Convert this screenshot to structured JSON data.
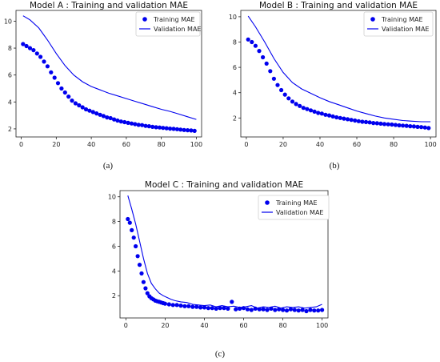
{
  "colors": {
    "series": "#0000ee",
    "axis": "#222222",
    "background": "#ffffff"
  },
  "chart_data": [
    {
      "panel": "a",
      "type": "line",
      "title": "Model A : Training and validation MAE",
      "caption": "(a)",
      "xlabel": "",
      "ylabel": "",
      "xlim": [
        -3,
        103
      ],
      "ylim": [
        1.4,
        10.8
      ],
      "xticks": [
        "0",
        "20",
        "40",
        "60",
        "80",
        "100"
      ],
      "yticks": [
        "2",
        "4",
        "6",
        "8",
        "10"
      ],
      "grid": false,
      "legend_position": "top-right",
      "series": [
        {
          "name": "Training MAE",
          "style": "markers",
          "x": [
            1,
            3,
            5,
            7,
            9,
            11,
            13,
            15,
            17,
            19,
            21,
            23,
            25,
            27,
            29,
            31,
            33,
            35,
            37,
            39,
            41,
            43,
            45,
            47,
            49,
            51,
            53,
            55,
            57,
            59,
            61,
            63,
            65,
            67,
            69,
            71,
            73,
            75,
            77,
            79,
            81,
            83,
            85,
            87,
            89,
            91,
            93,
            95,
            97,
            99
          ],
          "values": [
            8.3,
            8.15,
            8.0,
            7.85,
            7.6,
            7.35,
            7.0,
            6.65,
            6.2,
            5.8,
            5.4,
            5.0,
            4.7,
            4.4,
            4.1,
            3.9,
            3.75,
            3.6,
            3.45,
            3.35,
            3.25,
            3.15,
            3.05,
            2.95,
            2.85,
            2.8,
            2.7,
            2.62,
            2.55,
            2.5,
            2.45,
            2.4,
            2.35,
            2.3,
            2.28,
            2.22,
            2.2,
            2.15,
            2.12,
            2.1,
            2.07,
            2.05,
            2.02,
            2.0,
            1.98,
            1.95,
            1.92,
            1.9,
            1.88,
            1.85
          ]
        },
        {
          "name": "Validation MAE",
          "style": "line",
          "x": [
            1,
            5,
            10,
            15,
            20,
            25,
            30,
            35,
            40,
            45,
            50,
            55,
            60,
            65,
            70,
            75,
            80,
            85,
            90,
            95,
            100
          ],
          "values": [
            10.4,
            10.1,
            9.5,
            8.6,
            7.6,
            6.7,
            6.0,
            5.5,
            5.15,
            4.9,
            4.65,
            4.45,
            4.25,
            4.05,
            3.85,
            3.65,
            3.45,
            3.3,
            3.1,
            2.9,
            2.7
          ]
        }
      ]
    },
    {
      "panel": "b",
      "type": "line",
      "title": "Model B : Training and validation MAE",
      "caption": "(b)",
      "xlabel": "",
      "ylabel": "",
      "xlim": [
        -3,
        103
      ],
      "ylim": [
        0.5,
        10.5
      ],
      "xticks": [
        "0",
        "20",
        "40",
        "60",
        "80",
        "100"
      ],
      "yticks": [
        "2",
        "4",
        "6",
        "8",
        "10"
      ],
      "grid": false,
      "legend_position": "top-right",
      "series": [
        {
          "name": "Training MAE",
          "style": "markers",
          "x": [
            1,
            3,
            5,
            7,
            9,
            11,
            13,
            15,
            17,
            19,
            21,
            23,
            25,
            27,
            29,
            31,
            33,
            35,
            37,
            39,
            41,
            43,
            45,
            47,
            49,
            51,
            53,
            55,
            57,
            59,
            61,
            63,
            65,
            67,
            69,
            71,
            73,
            75,
            77,
            79,
            81,
            83,
            85,
            87,
            89,
            91,
            93,
            95,
            97,
            99
          ],
          "values": [
            8.2,
            8.0,
            7.7,
            7.3,
            6.8,
            6.3,
            5.7,
            5.1,
            4.6,
            4.2,
            3.85,
            3.55,
            3.3,
            3.1,
            2.95,
            2.8,
            2.7,
            2.6,
            2.5,
            2.4,
            2.35,
            2.25,
            2.2,
            2.12,
            2.05,
            2.0,
            1.95,
            1.9,
            1.85,
            1.8,
            1.75,
            1.7,
            1.68,
            1.65,
            1.6,
            1.58,
            1.55,
            1.52,
            1.5,
            1.48,
            1.45,
            1.42,
            1.4,
            1.38,
            1.35,
            1.33,
            1.3,
            1.28,
            1.25,
            1.2
          ]
        },
        {
          "name": "Validation MAE",
          "style": "line",
          "x": [
            1,
            5,
            10,
            15,
            20,
            25,
            30,
            35,
            40,
            45,
            50,
            55,
            60,
            65,
            70,
            75,
            80,
            85,
            90,
            95,
            100
          ],
          "values": [
            10.05,
            9.2,
            8.0,
            6.7,
            5.6,
            4.8,
            4.3,
            3.95,
            3.6,
            3.3,
            3.05,
            2.8,
            2.55,
            2.35,
            2.15,
            2.0,
            1.9,
            1.8,
            1.75,
            1.7,
            1.7
          ]
        }
      ]
    },
    {
      "panel": "c",
      "type": "line",
      "title": "Model C : Training and validation MAE",
      "caption": "(c)",
      "xlabel": "",
      "ylabel": "",
      "xlim": [
        -3,
        103
      ],
      "ylim": [
        0.2,
        10.5
      ],
      "xticks": [
        "0",
        "20",
        "40",
        "60",
        "80",
        "100"
      ],
      "yticks": [
        "2",
        "4",
        "6",
        "8",
        "10"
      ],
      "grid": false,
      "legend_position": "top-right",
      "series": [
        {
          "name": "Training MAE",
          "style": "markers",
          "x": [
            1,
            2,
            3,
            4,
            5,
            6,
            7,
            8,
            9,
            10,
            11,
            12,
            13,
            14,
            15,
            16,
            17,
            18,
            19,
            20,
            22,
            24,
            26,
            28,
            30,
            32,
            34,
            36,
            38,
            40,
            42,
            44,
            46,
            48,
            50,
            52,
            54,
            56,
            58,
            60,
            62,
            64,
            66,
            68,
            70,
            72,
            74,
            76,
            78,
            80,
            82,
            84,
            86,
            88,
            90,
            92,
            94,
            96,
            98,
            100
          ],
          "values": [
            8.2,
            7.9,
            7.3,
            6.7,
            6.0,
            5.2,
            4.5,
            3.8,
            3.1,
            2.6,
            2.2,
            1.95,
            1.8,
            1.7,
            1.6,
            1.55,
            1.5,
            1.45,
            1.4,
            1.35,
            1.3,
            1.25,
            1.25,
            1.2,
            1.15,
            1.15,
            1.1,
            1.1,
            1.05,
            1.05,
            1.0,
            1.0,
            0.95,
            1.0,
            1.0,
            0.95,
            1.5,
            0.9,
            0.95,
            1.0,
            0.9,
            0.85,
            0.95,
            0.9,
            0.9,
            0.85,
            0.95,
            0.85,
            0.9,
            0.85,
            0.8,
            0.9,
            0.85,
            0.8,
            0.85,
            0.75,
            0.85,
            0.8,
            0.8,
            0.85
          ]
        },
        {
          "name": "Validation MAE",
          "style": "line",
          "x": [
            1,
            3,
            5,
            7,
            9,
            11,
            13,
            15,
            17,
            19,
            21,
            23,
            25,
            28,
            31,
            34,
            37,
            40,
            43,
            46,
            49,
            52,
            55,
            58,
            61,
            64,
            67,
            70,
            73,
            76,
            79,
            82,
            85,
            88,
            91,
            94,
            97,
            100
          ],
          "values": [
            10.1,
            9.0,
            7.8,
            6.4,
            5.0,
            3.8,
            3.0,
            2.55,
            2.2,
            2.0,
            1.85,
            1.7,
            1.6,
            1.5,
            1.45,
            1.3,
            1.25,
            1.2,
            1.25,
            1.1,
            1.2,
            1.1,
            1.15,
            1.05,
            1.1,
            1.2,
            1.0,
            1.1,
            1.05,
            1.15,
            1.0,
            1.1,
            1.05,
            1.1,
            1.0,
            1.05,
            1.1,
            1.3
          ]
        }
      ]
    }
  ]
}
